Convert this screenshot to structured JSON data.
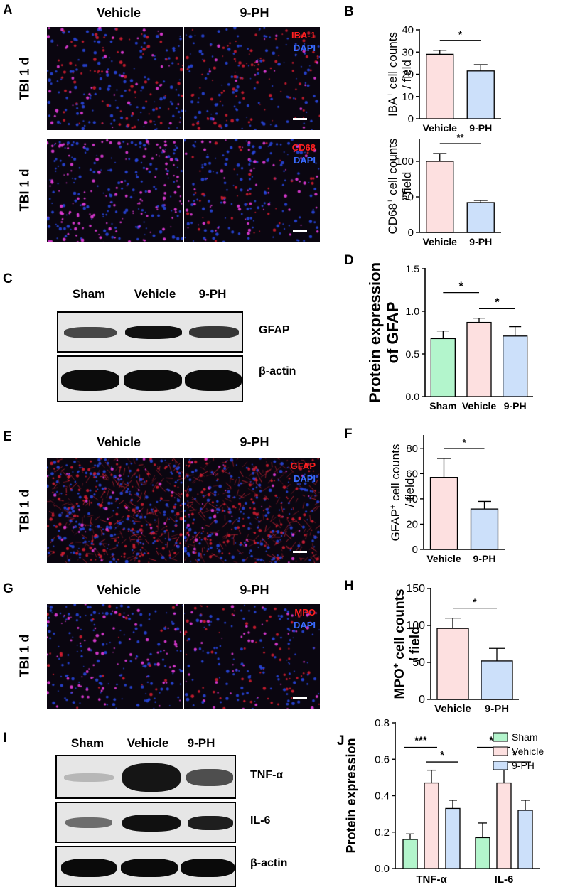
{
  "panels": {
    "A": {
      "letter": "A",
      "headers": [
        "Vehicle",
        "9-PH"
      ],
      "rows": [
        {
          "label": "TBI 1 d",
          "stain_red": "IBA-1",
          "stain_blue": "DAPI"
        },
        {
          "label": "TBI 1 d",
          "stain_red": "CD68",
          "stain_blue": "DAPI"
        }
      ]
    },
    "C": {
      "letter": "C",
      "lanes": [
        "Sham",
        "Vehicle",
        "9-PH"
      ],
      "rows": [
        "GFAP",
        "β-actin"
      ]
    },
    "E": {
      "letter": "E",
      "headers": [
        "Vehicle",
        "9-PH"
      ],
      "row_label": "TBI 1 d",
      "stain_red": "GFAP",
      "stain_blue": "DAPI"
    },
    "G": {
      "letter": "G",
      "headers": [
        "Vehicle",
        "9-PH"
      ],
      "row_label": "TBI 1 d",
      "stain_red": "MPO",
      "stain_blue": "DAPI"
    },
    "I": {
      "letter": "I",
      "lanes": [
        "Sham",
        "Vehicle",
        "9-PH"
      ],
      "rows": [
        "TNF-α",
        "IL-6",
        "β-actin"
      ]
    }
  },
  "colors": {
    "sham": "#b3f5cc",
    "vehicle": "#fde0e0",
    "ph": "#cce0fa",
    "red_stain": "#ff2020",
    "blue_stain": "#3a6cff"
  },
  "chart_data": [
    {
      "id": "B1",
      "letter": "B",
      "type": "bar",
      "categories": [
        "Vehicle",
        "9-PH"
      ],
      "values": [
        29,
        21.5
      ],
      "errors": [
        1.8,
        2.8
      ],
      "ylim": [
        0,
        40
      ],
      "yticks": [
        0,
        10,
        20,
        30,
        40
      ],
      "ylabel_line1": "IBA",
      "ylabel_sup": "+",
      "ylabel_line1_rest": " cell counts",
      "ylabel_line2": "/ field",
      "colors": [
        "#fde0e0",
        "#cce0fa"
      ],
      "significance": [
        {
          "from": 0,
          "to": 1,
          "label": "*"
        }
      ]
    },
    {
      "id": "B2",
      "type": "bar",
      "categories": [
        "Vehicle",
        "9-PH"
      ],
      "values": [
        100,
        42
      ],
      "errors": [
        11,
        3
      ],
      "ylim": [
        0,
        130
      ],
      "yticks": [
        0,
        50,
        100
      ],
      "ylabel_line1": "CD68",
      "ylabel_sup": "+",
      "ylabel_line1_rest": " cell counts",
      "ylabel_line2": "/ field",
      "colors": [
        "#fde0e0",
        "#cce0fa"
      ],
      "significance": [
        {
          "from": 0,
          "to": 1,
          "label": "**"
        }
      ]
    },
    {
      "id": "D",
      "letter": "D",
      "type": "bar",
      "categories": [
        "Sham",
        "Vehicle",
        "9-PH"
      ],
      "values": [
        0.68,
        0.87,
        0.71
      ],
      "errors": [
        0.09,
        0.05,
        0.11
      ],
      "ylim": [
        0,
        1.5
      ],
      "yticks": [
        0.0,
        0.5,
        1.0,
        1.5
      ],
      "ylabel_line1": "Protein expression",
      "ylabel_line2": "of GFAP",
      "colors": [
        "#b3f5cc",
        "#fde0e0",
        "#cce0fa"
      ],
      "significance": [
        {
          "from": 0,
          "to": 1,
          "label": "*"
        },
        {
          "from": 1,
          "to": 2,
          "label": "*"
        }
      ]
    },
    {
      "id": "F",
      "letter": "F",
      "type": "bar",
      "categories": [
        "Vehicle",
        "9-PH"
      ],
      "values": [
        57,
        32
      ],
      "errors": [
        15,
        6
      ],
      "ylim": [
        0,
        90
      ],
      "yticks": [
        0,
        20,
        40,
        60,
        80
      ],
      "ylabel_line1": "GFAP",
      "ylabel_sup": "+",
      "ylabel_line1_rest": " cell counts",
      "ylabel_line2": "/ field",
      "colors": [
        "#fde0e0",
        "#cce0fa"
      ],
      "significance": [
        {
          "from": 0,
          "to": 1,
          "label": "*"
        }
      ]
    },
    {
      "id": "H",
      "letter": "H",
      "type": "bar",
      "categories": [
        "Vehicle",
        "9-PH"
      ],
      "values": [
        96,
        52
      ],
      "errors": [
        14,
        17
      ],
      "ylim": [
        0,
        150
      ],
      "yticks": [
        0,
        50,
        100,
        150
      ],
      "ylabel_line1": "MPO",
      "ylabel_sup": "+",
      "ylabel_line1_rest": " cell counts",
      "ylabel_line2": "/ field",
      "colors": [
        "#fde0e0",
        "#cce0fa"
      ],
      "significance": [
        {
          "from": 0,
          "to": 1,
          "label": "*"
        }
      ]
    },
    {
      "id": "J",
      "letter": "J",
      "type": "bar",
      "categories": [
        "TNF-α",
        "IL-6"
      ],
      "series": [
        {
          "name": "Sham",
          "values": [
            0.16,
            0.17
          ],
          "errors": [
            0.03,
            0.08
          ]
        },
        {
          "name": "Vehicle",
          "values": [
            0.47,
            0.47
          ],
          "errors": [
            0.07,
            0.12
          ]
        },
        {
          "name": "9-PH",
          "values": [
            0.33,
            0.32
          ],
          "errors": [
            0.045,
            0.055
          ]
        }
      ],
      "ylim": [
        0,
        0.8
      ],
      "yticks": [
        0.0,
        0.2,
        0.4,
        0.6,
        0.8
      ],
      "ylabel_line1": "Protein expression",
      "legend_position": "top-right",
      "colors": [
        "#b3f5cc",
        "#fde0e0",
        "#cce0fa"
      ],
      "significance": [
        {
          "group": 0,
          "from": 0,
          "to": 1,
          "label": "***"
        },
        {
          "group": 0,
          "from": 1,
          "to": 2,
          "label": "*"
        },
        {
          "group": 1,
          "from": 0,
          "to": 1,
          "label": "**"
        },
        {
          "group": 1,
          "from": 1,
          "to": 2,
          "label": "*"
        }
      ]
    }
  ]
}
